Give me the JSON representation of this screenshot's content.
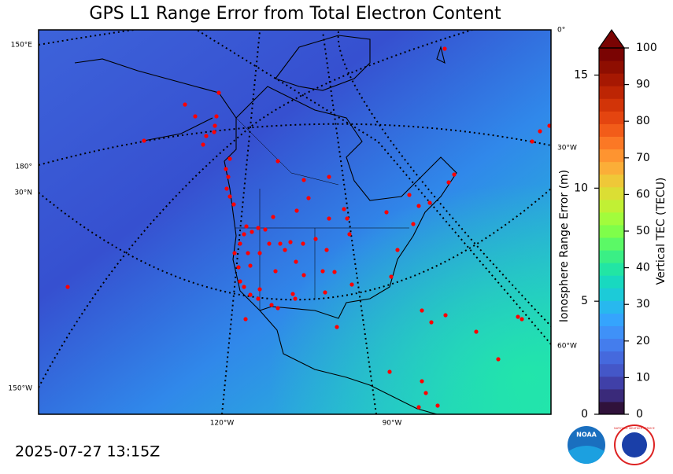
{
  "title": "GPS L1 Range Error from Total Electron Content",
  "timestamp": "2025-07-27 13:15Z",
  "map": {
    "graticule_labels": [
      "150°E",
      "180°",
      "30°N",
      "150°W",
      "0°",
      "30°W",
      "60°W",
      "120°W",
      "90°W"
    ]
  },
  "colorbar": {
    "label": "Vertical TEC (TECU)",
    "ylim": [
      0,
      100
    ],
    "yticks": [
      0,
      10,
      20,
      30,
      40,
      50,
      60,
      70,
      80,
      90,
      100
    ],
    "y2label": "Ionosphere Range Error (m)",
    "y2lim": [
      0,
      16.2
    ],
    "y2ticks": [
      0,
      5,
      10,
      15
    ]
  },
  "logos": [
    "NOAA",
    "NATIONAL WEATHER SERVICE"
  ]
}
